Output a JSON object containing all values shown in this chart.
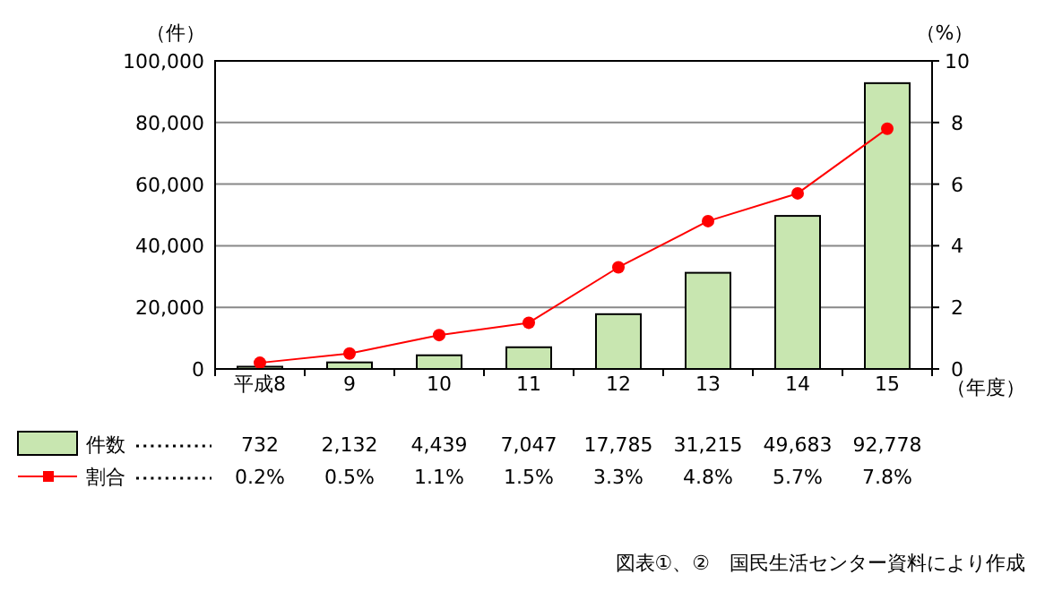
{
  "chart_data": {
    "type": "bar",
    "ylabel": "（件）",
    "y2label": "（%）",
    "xlabel": "（年度）",
    "categories": [
      "平成8",
      "9",
      "10",
      "11",
      "12",
      "13",
      "14",
      "15"
    ],
    "series": [
      {
        "name": "件数",
        "color": "#c8e6b0",
        "values": [
          732,
          2132,
          4439,
          7047,
          17785,
          31215,
          49683,
          92778
        ],
        "value_labels": [
          "732",
          "2,132",
          "4,439",
          "7,047",
          "17,785",
          "31,215",
          "49,683",
          "92,778"
        ]
      },
      {
        "name": "割合",
        "type": "line",
        "axis": "y2",
        "color": "#ff0000",
        "marker": "circle",
        "values": [
          0.2,
          0.5,
          1.1,
          1.5,
          3.3,
          4.8,
          5.7,
          7.8
        ],
        "value_labels": [
          "0.2%",
          "0.5%",
          "1.1%",
          "1.5%",
          "3.3%",
          "4.8%",
          "5.7%",
          "7.8%"
        ]
      }
    ],
    "ylim": [
      0,
      100000
    ],
    "yticks": [
      {
        "value": 0,
        "label": "0"
      },
      {
        "value": 20000,
        "label": "20,000"
      },
      {
        "value": 40000,
        "label": "40,000"
      },
      {
        "value": 60000,
        "label": "60,000"
      },
      {
        "value": 80000,
        "label": "80,000"
      },
      {
        "value": 100000,
        "label": "100,000"
      }
    ],
    "y2lim": [
      0,
      10
    ],
    "y2ticks": [
      0,
      2,
      4,
      6,
      8,
      10
    ],
    "grid": "y",
    "legend": "bottom",
    "annotations": [
      "図表①、②　国民生活センター資料により作成"
    ]
  }
}
